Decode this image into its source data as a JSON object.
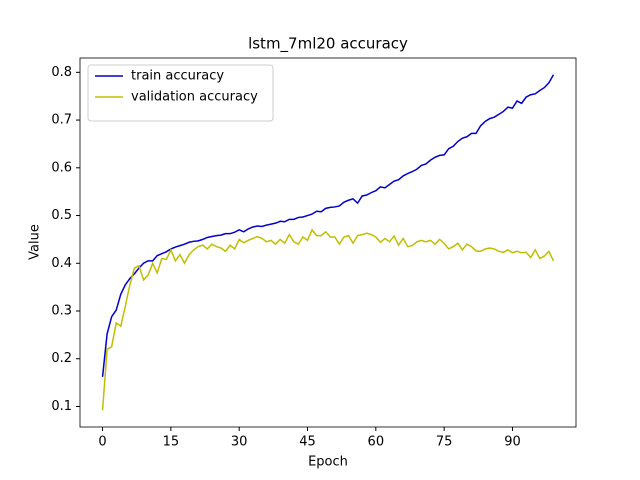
{
  "chart_data": {
    "type": "line",
    "title": "lstm_7ml20 accuracy",
    "x_label": "Epoch",
    "y_label": "Value",
    "x": [
      0,
      1,
      2,
      3,
      4,
      5,
      6,
      7,
      8,
      9,
      10,
      11,
      12,
      13,
      14,
      15,
      16,
      17,
      18,
      19,
      20,
      21,
      22,
      23,
      24,
      25,
      26,
      27,
      28,
      29,
      30,
      31,
      32,
      33,
      34,
      35,
      36,
      37,
      38,
      39,
      40,
      41,
      42,
      43,
      44,
      45,
      46,
      47,
      48,
      49,
      50,
      51,
      52,
      53,
      54,
      55,
      56,
      57,
      58,
      59,
      60,
      61,
      62,
      63,
      64,
      65,
      66,
      67,
      68,
      69,
      70,
      71,
      72,
      73,
      74,
      75,
      76,
      77,
      78,
      79,
      80,
      81,
      82,
      83,
      84,
      85,
      86,
      87,
      88,
      89,
      90,
      91,
      92,
      93,
      94,
      95,
      96,
      97,
      98,
      99
    ],
    "series": [
      {
        "name": "train accuracy",
        "color": "#0000cc",
        "values": [
          0.162,
          0.252,
          0.288,
          0.302,
          0.335,
          0.355,
          0.368,
          0.378,
          0.39,
          0.4,
          0.405,
          0.405,
          0.416,
          0.42,
          0.424,
          0.43,
          0.434,
          0.437,
          0.44,
          0.444,
          0.446,
          0.447,
          0.45,
          0.454,
          0.456,
          0.458,
          0.459,
          0.462,
          0.462,
          0.465,
          0.47,
          0.466,
          0.472,
          0.476,
          0.478,
          0.477,
          0.48,
          0.482,
          0.484,
          0.488,
          0.487,
          0.492,
          0.492,
          0.496,
          0.497,
          0.5,
          0.503,
          0.509,
          0.508,
          0.515,
          0.517,
          0.518,
          0.52,
          0.528,
          0.532,
          0.535,
          0.526,
          0.541,
          0.543,
          0.548,
          0.552,
          0.56,
          0.558,
          0.565,
          0.572,
          0.575,
          0.583,
          0.588,
          0.592,
          0.597,
          0.605,
          0.608,
          0.616,
          0.622,
          0.626,
          0.627,
          0.64,
          0.645,
          0.655,
          0.662,
          0.665,
          0.672,
          0.672,
          0.688,
          0.697,
          0.703,
          0.706,
          0.712,
          0.718,
          0.727,
          0.725,
          0.74,
          0.735,
          0.748,
          0.753,
          0.755,
          0.762,
          0.768,
          0.778,
          0.795
        ]
      },
      {
        "name": "validation accuracy",
        "color": "#bfbf00",
        "values": [
          0.092,
          0.22,
          0.225,
          0.275,
          0.268,
          0.31,
          0.355,
          0.39,
          0.395,
          0.365,
          0.375,
          0.4,
          0.38,
          0.41,
          0.408,
          0.428,
          0.405,
          0.418,
          0.4,
          0.418,
          0.428,
          0.435,
          0.438,
          0.43,
          0.44,
          0.435,
          0.432,
          0.425,
          0.438,
          0.43,
          0.45,
          0.443,
          0.448,
          0.452,
          0.456,
          0.452,
          0.445,
          0.448,
          0.44,
          0.45,
          0.442,
          0.46,
          0.445,
          0.44,
          0.455,
          0.448,
          0.47,
          0.458,
          0.458,
          0.466,
          0.455,
          0.455,
          0.44,
          0.455,
          0.458,
          0.442,
          0.458,
          0.46,
          0.463,
          0.46,
          0.455,
          0.444,
          0.452,
          0.445,
          0.457,
          0.438,
          0.452,
          0.435,
          0.437,
          0.445,
          0.448,
          0.445,
          0.448,
          0.44,
          0.45,
          0.442,
          0.43,
          0.435,
          0.442,
          0.428,
          0.44,
          0.435,
          0.426,
          0.425,
          0.43,
          0.432,
          0.43,
          0.425,
          0.423,
          0.428,
          0.422,
          0.425,
          0.422,
          0.423,
          0.412,
          0.428,
          0.41,
          0.415,
          0.425,
          0.405
        ]
      }
    ],
    "xlim": [
      -4.95,
      103.95
    ],
    "xticks": [
      0,
      15,
      30,
      45,
      60,
      75,
      90
    ],
    "ylim": [
      0.057,
      0.83
    ],
    "yticks": [
      0.1,
      0.2,
      0.3,
      0.4,
      0.5,
      0.6,
      0.7,
      0.8
    ],
    "legend": "upper left",
    "grid": false
  }
}
